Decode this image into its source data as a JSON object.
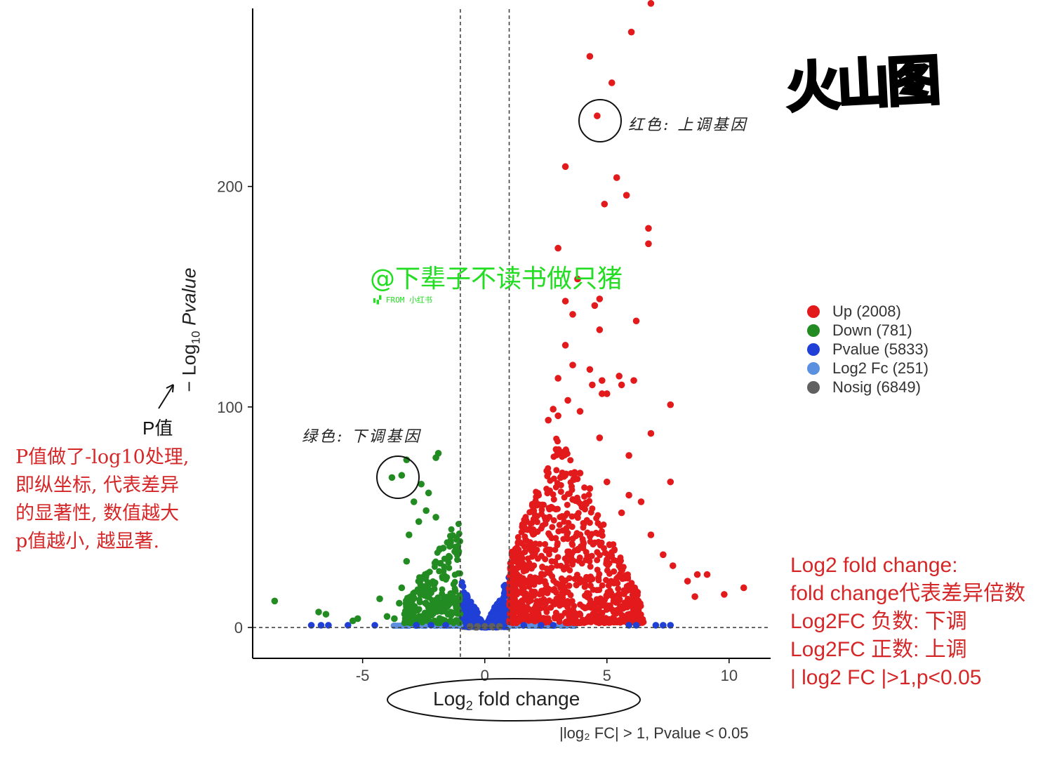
{
  "chart_data": {
    "type": "scatter",
    "title": "火山图",
    "xlabel_base": "Log",
    "xlabel_sub": "2",
    "xlabel_rest": " fold change",
    "ylabel_prefix": "− Log",
    "ylabel_sub": "10",
    "ylabel_rest": " Pvalue",
    "xlim": [
      -9.5,
      11.7
    ],
    "ylim": [
      -14,
      282
    ],
    "xticks": [
      -5,
      0,
      5,
      10
    ],
    "yticks": [
      0,
      100,
      200
    ],
    "thresholds": {
      "fc_left": -1,
      "fc_right": 1,
      "p_line": 0
    },
    "caption": "|log₂ FC| > 1, Pvalue < 0.05",
    "series": [
      {
        "name": "Up (2008)",
        "color": "#e31a1c",
        "points": [
          [
            6.8,
            283
          ],
          [
            6.0,
            270
          ],
          [
            4.3,
            259
          ],
          [
            5.2,
            247
          ],
          [
            4.6,
            232
          ],
          [
            3.3,
            209
          ],
          [
            5.4,
            204
          ],
          [
            4.9,
            192
          ],
          [
            5.8,
            196
          ],
          [
            6.7,
            181
          ],
          [
            6.7,
            174
          ],
          [
            3.0,
            172
          ],
          [
            3.8,
            158
          ],
          [
            3.3,
            148
          ],
          [
            4.7,
            149
          ],
          [
            4.5,
            146
          ],
          [
            3.6,
            142
          ],
          [
            4.7,
            135
          ],
          [
            6.2,
            139
          ],
          [
            3.3,
            128
          ],
          [
            3.6,
            119
          ],
          [
            4.3,
            117
          ],
          [
            5.5,
            114
          ],
          [
            4.8,
            112
          ],
          [
            6.1,
            112
          ],
          [
            3.0,
            113
          ],
          [
            4.4,
            110
          ],
          [
            5.6,
            110
          ],
          [
            4.8,
            106
          ],
          [
            5.0,
            106
          ],
          [
            7.6,
            101
          ],
          [
            2.8,
            99
          ],
          [
            3.4,
            103
          ],
          [
            3.0,
            96
          ],
          [
            2.6,
            94
          ],
          [
            3.9,
            98
          ],
          [
            4.7,
            86
          ],
          [
            5.9,
            78
          ],
          [
            6.8,
            88
          ],
          [
            7.6,
            66
          ],
          [
            6.4,
            57
          ],
          [
            5.9,
            60
          ],
          [
            6.8,
            42
          ],
          [
            7.3,
            33
          ],
          [
            7.7,
            28
          ],
          [
            8.3,
            21
          ],
          [
            8.7,
            24
          ],
          [
            9.1,
            24
          ],
          [
            8.6,
            14
          ],
          [
            9.8,
            15
          ],
          [
            10.6,
            18
          ],
          [
            5.0,
            66
          ],
          [
            5.6,
            52
          ],
          [
            3.9,
            70
          ],
          [
            4.3,
            63
          ],
          [
            3.6,
            58
          ],
          [
            2.2,
            60
          ],
          [
            2.6,
            70
          ],
          [
            3.1,
            68
          ],
          [
            3.3,
            80
          ]
        ],
        "cloud": {
          "xmin": 1.0,
          "xmax": 6.5,
          "ymax": 65,
          "n": 900
        }
      },
      {
        "name": "Down (781)",
        "color": "#228b22",
        "points": [
          [
            -8.6,
            12
          ],
          [
            -6.8,
            7
          ],
          [
            -6.5,
            6
          ],
          [
            -5.2,
            4
          ],
          [
            -5.4,
            3
          ],
          [
            -4.3,
            13
          ],
          [
            -4.0,
            5
          ],
          [
            -3.7,
            4
          ],
          [
            -3.8,
            68
          ],
          [
            -3.4,
            69
          ],
          [
            -3.2,
            76
          ],
          [
            -2.0,
            77
          ],
          [
            -1.9,
            79
          ],
          [
            -2.6,
            65
          ],
          [
            -2.4,
            53
          ],
          [
            -2.7,
            48
          ],
          [
            -3.1,
            42
          ],
          [
            -3.2,
            30
          ],
          [
            -3.4,
            18
          ],
          [
            -3.5,
            11
          ],
          [
            -2.9,
            57
          ],
          [
            -2.3,
            61
          ],
          [
            -2.0,
            50
          ],
          [
            -1.7,
            36
          ]
        ],
        "cloud": {
          "xmin": -3.3,
          "xmax": -1.0,
          "ymax": 40,
          "n": 280
        }
      },
      {
        "name": "Pvalue (5833)",
        "color": "#1f3fd6",
        "points": [
          [
            -7.1,
            1
          ],
          [
            -6.7,
            1
          ],
          [
            -6.4,
            1
          ],
          [
            -5.6,
            1
          ],
          [
            -4.5,
            1
          ],
          [
            -2.8,
            1
          ],
          [
            -2.2,
            1
          ],
          [
            -1.6,
            1
          ],
          [
            1.6,
            1
          ],
          [
            2.3,
            1
          ],
          [
            2.8,
            1
          ],
          [
            5.9,
            1
          ],
          [
            6.2,
            1
          ],
          [
            7.0,
            1
          ],
          [
            7.3,
            1
          ],
          [
            7.6,
            1
          ]
        ],
        "cloud": {
          "xmin": -1.0,
          "xmax": 1.0,
          "ymax": 24,
          "n": 260
        }
      },
      {
        "name": "Log2 Fc (251)",
        "color": "#5b8fe0",
        "points": []
      },
      {
        "name": "Nosig (6849)",
        "color": "#606060",
        "points": [
          [
            -0.6,
            0.5
          ],
          [
            -0.3,
            0.5
          ],
          [
            0,
            0.5
          ],
          [
            0.3,
            0.5
          ],
          [
            0.6,
            0.5
          ]
        ]
      }
    ]
  },
  "annotations": {
    "red_label": "红色: 上调基因",
    "green_label": "绿色: 下调基因",
    "p_label": "P值",
    "left_note": [
      "P值做了-log10处理,",
      "即纵坐标, 代表差异",
      "的显著性, 数值越大",
      "p值越小, 越显著."
    ],
    "right_note": [
      "Log2 fold change:",
      "fold change代表差异倍数",
      "Log2FC 负数: 下调",
      "Log2FC 正数: 上调",
      "| log2 FC |>1,p<0.05"
    ],
    "watermark": "@下辈子不读书做只猪",
    "watermark_sub": "▮▞ FROM 小红书"
  }
}
